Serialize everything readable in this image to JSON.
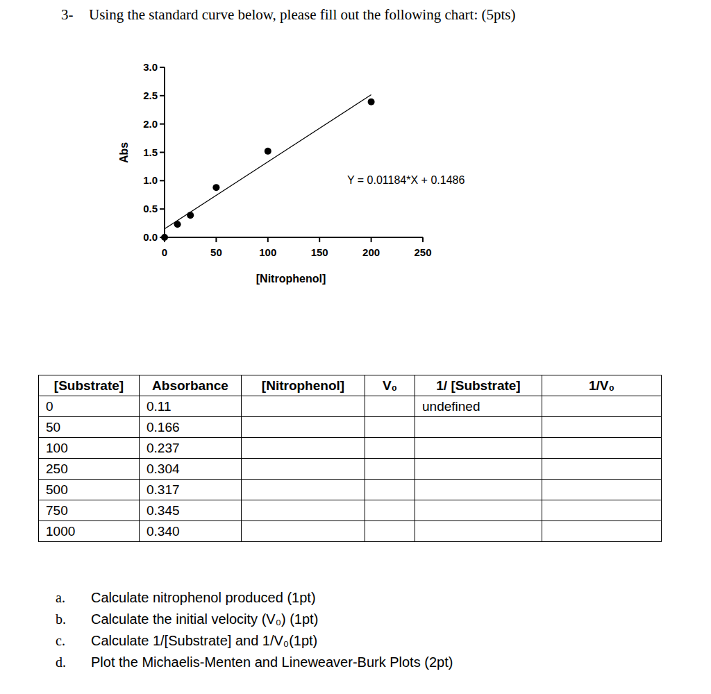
{
  "question": {
    "number": "3-",
    "text": "Using the standard curve below, please fill out the following chart: (5pts)"
  },
  "chart_data": {
    "type": "scatter",
    "x_label": "[Nitrophenol]",
    "y_label": "Abs",
    "x": [
      0,
      12.5,
      25,
      50,
      100,
      200
    ],
    "values": [
      0,
      0.23,
      0.39,
      0.88,
      1.52,
      2.39
    ],
    "color": "#000000",
    "marker": "circle",
    "xlim": [
      0,
      250
    ],
    "ylim": [
      0,
      3
    ],
    "xticks": [
      0,
      50,
      100,
      150,
      200,
      250
    ],
    "yticks": [
      {
        "value": 0,
        "label": "0.0"
      },
      {
        "value": 0.5,
        "label": "0.5"
      },
      {
        "value": 1,
        "label": "1.0"
      },
      {
        "value": 1.5,
        "label": "1.5"
      },
      {
        "value": 2,
        "label": "2.0"
      },
      {
        "value": 2.5,
        "label": "2.5"
      },
      {
        "value": 3,
        "label": "3.0"
      }
    ],
    "fit": {
      "label": "Y = 0.01184*X + 0.1486",
      "slope": 0.01184,
      "intercept": 0.1486
    }
  },
  "table": {
    "headers": [
      "[Substrate]",
      "Absorbance",
      "[Nitrophenol]",
      "V₀",
      "1/ [Substrate]",
      "1/V₀"
    ],
    "rows": [
      [
        "0",
        "0.11",
        null,
        null,
        "undefined",
        null
      ],
      [
        "50",
        "0.166",
        null,
        null,
        null,
        null
      ],
      [
        "100",
        "0.237",
        null,
        null,
        null,
        null
      ],
      [
        "250",
        "0.304",
        null,
        null,
        null,
        null
      ],
      [
        "500",
        "0.317",
        null,
        null,
        null,
        null
      ],
      [
        "750",
        "0.345",
        null,
        null,
        null,
        null
      ],
      [
        "1000",
        "0.340",
        null,
        null,
        null,
        null
      ]
    ]
  },
  "tasks": [
    {
      "label": "a.",
      "text": "Calculate nitrophenol produced (1pt)"
    },
    {
      "label": "b.",
      "text": "Calculate the initial velocity (V₀) (1pt)"
    },
    {
      "label": "c.",
      "text": "Calculate 1/[Substrate] and 1/V₀(1pt)"
    },
    {
      "label": "d.",
      "text": "Plot the Michaelis-Menten and Lineweaver-Burk Plots (2pt)"
    }
  ]
}
